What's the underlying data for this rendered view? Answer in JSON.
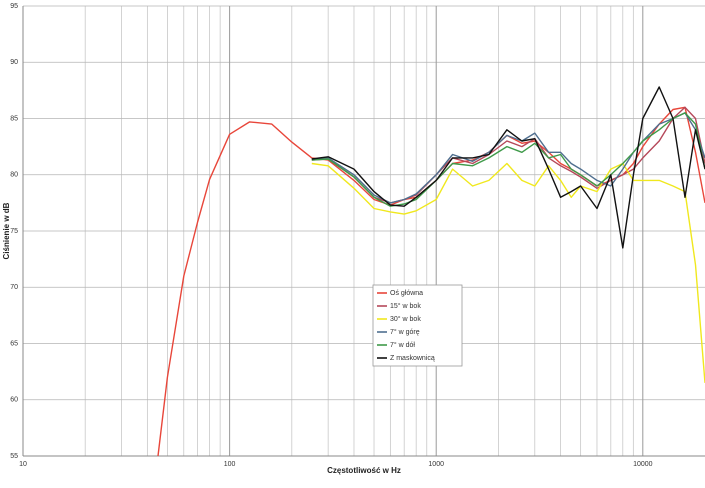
{
  "chart_data": {
    "type": "line",
    "xlabel": "Częstotliwość w Hz",
    "ylabel": "Ciśnienie w dB",
    "log_x": true,
    "grid": true,
    "xlim": [
      10,
      20000
    ],
    "ylim": [
      55,
      95
    ],
    "xticks": [
      10,
      100,
      1000,
      10000
    ],
    "x_minor_ticks": [
      20,
      30,
      40,
      50,
      60,
      70,
      80,
      90,
      200,
      300,
      400,
      500,
      600,
      700,
      800,
      900,
      2000,
      3000,
      4000,
      5000,
      6000,
      7000,
      8000,
      9000
    ],
    "yticks": [
      55,
      60,
      65,
      70,
      75,
      80,
      85,
      90,
      95
    ],
    "x": [
      45,
      50,
      60,
      70,
      80,
      100,
      125,
      160,
      200,
      250,
      300,
      400,
      500,
      600,
      700,
      800,
      1000,
      1200,
      1500,
      1800,
      2200,
      2600,
      3000,
      3500,
      4000,
      4500,
      5000,
      6000,
      7000,
      8000,
      9000,
      10000,
      12000,
      14000,
      16000,
      18000,
      20000
    ],
    "series": [
      {
        "name": "Oś główna",
        "color": "#e8463a",
        "values": [
          55,
          62,
          71,
          75.8,
          79.6,
          83.6,
          84.7,
          84.5,
          82.9,
          81.5,
          81.3,
          79.5,
          77.8,
          77.3,
          77.8,
          78,
          79.5,
          81,
          81.3,
          82,
          83.5,
          82.8,
          83,
          82,
          81,
          80.5,
          80,
          79,
          79.5,
          80,
          81,
          82.5,
          84.5,
          85.8,
          86,
          82,
          77.5
        ]
      },
      {
        "name": "15° w bok",
        "color": "#b5485a",
        "values": [
          null,
          null,
          null,
          null,
          null,
          null,
          null,
          null,
          null,
          81.3,
          81.4,
          79.8,
          78,
          77.5,
          77.8,
          78.2,
          80,
          81.5,
          81,
          81.8,
          83,
          82.5,
          83.2,
          81.5,
          80.8,
          80.3,
          79.8,
          78.8,
          79.5,
          80,
          80.5,
          81.5,
          83,
          85,
          86,
          85,
          81
        ]
      },
      {
        "name": "30° w bok",
        "color": "#f0e81e",
        "values": [
          null,
          null,
          null,
          null,
          null,
          null,
          null,
          null,
          null,
          81,
          80.8,
          78.8,
          77,
          76.7,
          76.5,
          76.8,
          77.8,
          80.5,
          79,
          79.5,
          81,
          79.5,
          79,
          80.8,
          79.5,
          78,
          79,
          78.5,
          80.5,
          81,
          79.5,
          79.5,
          79.5,
          79,
          78.5,
          72,
          61.5
        ]
      },
      {
        "name": "7° w górę",
        "color": "#4f6f8f",
        "values": [
          null,
          null,
          null,
          null,
          null,
          null,
          null,
          null,
          null,
          81.4,
          81.5,
          80,
          78.2,
          77.5,
          77.8,
          78.3,
          80,
          81.8,
          81.2,
          82,
          83.5,
          83,
          83.7,
          82,
          82,
          81,
          80.5,
          79.5,
          79,
          80.5,
          82,
          83,
          84.5,
          85,
          85.5,
          84,
          81.5
        ]
      },
      {
        "name": "7° w dół",
        "color": "#3f9a4a",
        "values": [
          null,
          null,
          null,
          null,
          null,
          null,
          null,
          null,
          null,
          81.3,
          81.4,
          79.8,
          78,
          77.2,
          77.4,
          77.8,
          79.5,
          81,
          80.8,
          81.5,
          82.5,
          82,
          82.8,
          81.5,
          81.8,
          80.5,
          80,
          79,
          80,
          81,
          82,
          83,
          84,
          85,
          85.5,
          84.5,
          80.5
        ]
      },
      {
        "name": "Z maskownicą",
        "color": "#111111",
        "values": [
          null,
          null,
          null,
          null,
          null,
          null,
          null,
          null,
          null,
          81.4,
          81.6,
          80.5,
          78.5,
          77.3,
          77.2,
          78,
          79.5,
          81.5,
          81.5,
          81.8,
          84,
          83,
          83.2,
          80.5,
          78,
          78.5,
          79,
          77,
          80,
          73.5,
          80,
          85,
          87.8,
          85,
          78,
          84,
          80.5
        ]
      }
    ]
  }
}
